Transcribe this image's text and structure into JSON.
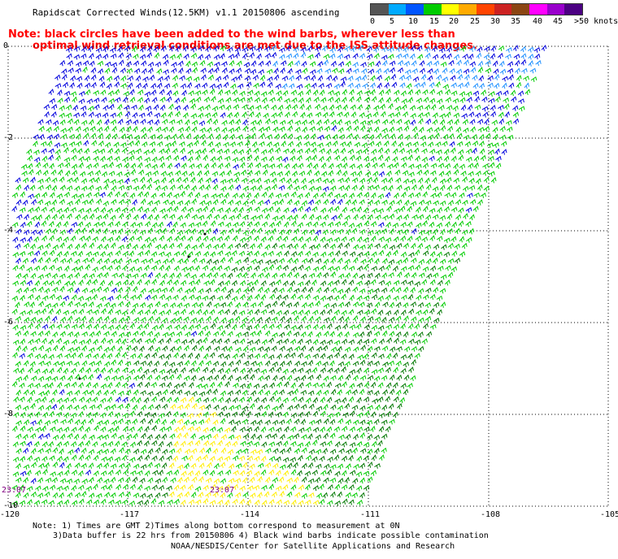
{
  "title": "Rapidscat Corrected Winds(12.5KM) v1.1 20150806 ascending",
  "note": {
    "line1": "Note: black circles have been added to the wind barbs, wherever less than",
    "line2": "optimal wind retrieval conditions are met due to the ISS attitude changes."
  },
  "colorbar": {
    "colors": [
      "#555555",
      "#00aaff",
      "#0055ff",
      "#00cc00",
      "#ffff00",
      "#ffaa00",
      "#ff4400",
      "#cc2222",
      "#8b4513",
      "#ff00ff",
      "#9900cc",
      "#4b0082"
    ],
    "labels": [
      "0",
      "5",
      "10",
      "15",
      "20",
      "25",
      "30",
      "35",
      "40",
      "45",
      ">50 knots"
    ]
  },
  "axes": {
    "x_ticks": [
      "-120",
      "-117",
      "-114",
      "-111",
      "-108",
      "-105"
    ],
    "y_ticks": [
      "0",
      "-2",
      "-4",
      "-6",
      "-8",
      "-10"
    ]
  },
  "times": [
    "23:07",
    "23:07"
  ],
  "footer": {
    "line1": "Note: 1) Times are GMT 2)Times along bottom correspond to measurement at 0N",
    "line2": "3)Data buffer is 22 hrs from 20150806 4) Black wind barbs indicate possible contamination",
    "line3": "NOAA/NESDIS/Center for Satellite Applications and Research"
  },
  "wind_colors": {
    "blue": "#0000dd",
    "light_blue": "#1e90ff",
    "green": "#00cc00",
    "dark_green": "#007700",
    "yellow": "#ffee00",
    "black": "#000000"
  }
}
